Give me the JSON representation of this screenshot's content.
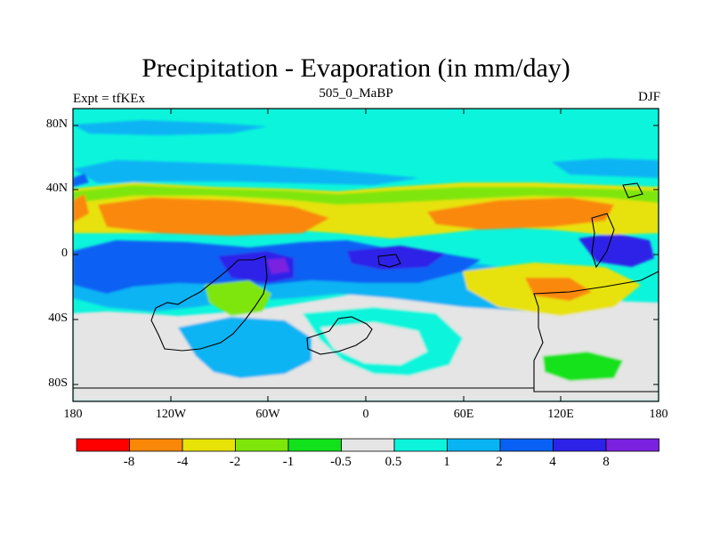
{
  "title": "Precipitation - Evaporation (in mm/day)",
  "subtitle": "505_0_MaBP",
  "left_label": "Expt = tfKEx",
  "right_label": "DJF",
  "map": {
    "lat_labels": [
      "80N",
      "40N",
      "0",
      "40S",
      "80S"
    ],
    "lon_labels": [
      "180",
      "120W",
      "60W",
      "0",
      "60E",
      "120E",
      "180"
    ],
    "colors": {
      "strong_dry": "#fe0000",
      "dry": "#f98808",
      "moderate_dry": "#e7e208",
      "light_dry": "#7fe60a",
      "slight_dry": "#12e21c",
      "neutral": "#e5e5e5",
      "slight_wet": "#0cf4dc",
      "light_wet": "#08b4f4",
      "moderate_wet": "#0861f4",
      "wet": "#2d23e8",
      "strong_wet": "#7a22e0",
      "coastline": "#000000"
    }
  },
  "colorbar": {
    "tick_labels": [
      "-8",
      "-4",
      "-2",
      "-1",
      "-0.5",
      "0.5",
      "1",
      "2",
      "4",
      "8"
    ],
    "colors": [
      "#fe0000",
      "#f98808",
      "#e7e208",
      "#7fe60a",
      "#12e21c",
      "#e5e5e5",
      "#0cf4dc",
      "#08b4f4",
      "#0861f4",
      "#2d23e8",
      "#7a22e0"
    ]
  }
}
